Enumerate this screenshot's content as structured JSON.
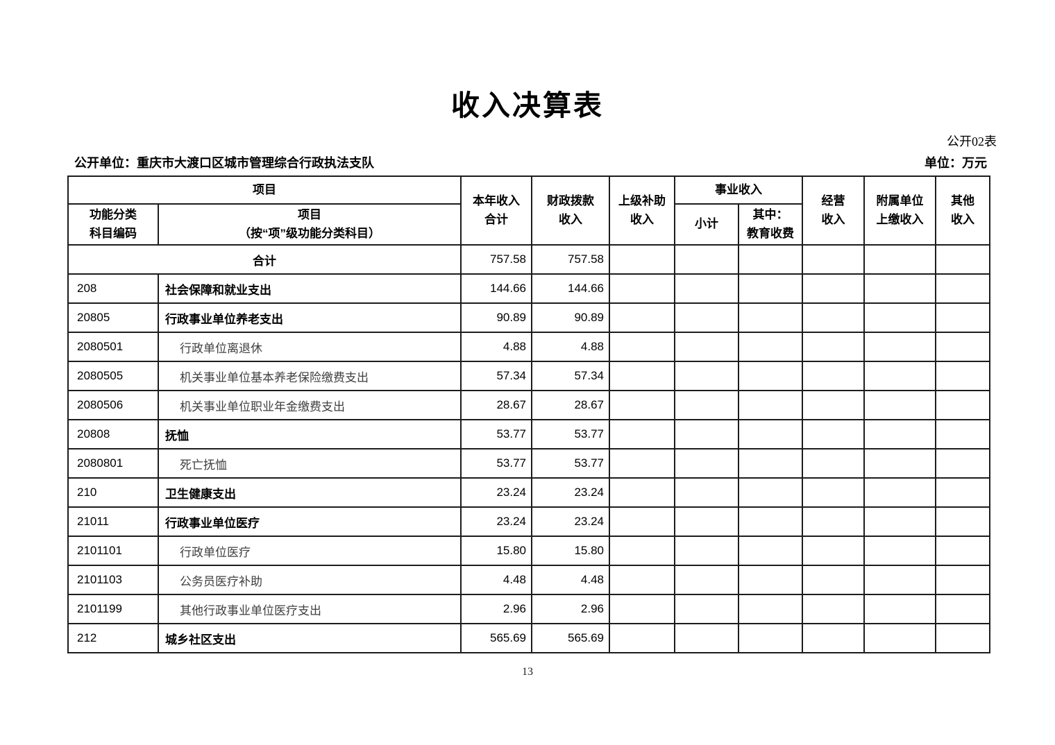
{
  "page": {
    "title": "收入决算表",
    "table_code": "公开02表",
    "unit_label": "公开单位：重庆市大渡口区城市管理综合行政执法支队",
    "currency_label": "单位：万元",
    "page_number": "13"
  },
  "table": {
    "header": {
      "item_group": "项目",
      "code_col": "功能分类\n科目编码",
      "item_col": "项目\n（按“项”级功能分类科目）",
      "total_income": "本年收入\n合计",
      "fiscal": "财政拨款\n收入",
      "superior": "上级补助\n收入",
      "business_group": "事业收入",
      "business_subtotal": "小计",
      "business_edu": "其中：\n教育收费",
      "operating": "经营\n收入",
      "affiliated": "附属单位\n上缴收入",
      "other": "其他\n收入"
    },
    "rows": [
      {
        "merged": true,
        "name": "合计",
        "total": "757.58",
        "fiscal": "757.58"
      },
      {
        "code": "208",
        "name": "社会保障和就业支出",
        "style": "bold",
        "total": "144.66",
        "fiscal": "144.66"
      },
      {
        "code": "20805",
        "name": "行政事业单位养老支出",
        "style": "bold",
        "total": "90.89",
        "fiscal": "90.89"
      },
      {
        "code": "2080501",
        "name": "行政单位离退休",
        "style": "light",
        "total": "4.88",
        "fiscal": "4.88"
      },
      {
        "code": "2080505",
        "name": "机关事业单位基本养老保险缴费支出",
        "style": "light",
        "total": "57.34",
        "fiscal": "57.34"
      },
      {
        "code": "2080506",
        "name": "机关事业单位职业年金缴费支出",
        "style": "light",
        "total": "28.67",
        "fiscal": "28.67"
      },
      {
        "code": "20808",
        "name": "抚恤",
        "style": "bold",
        "total": "53.77",
        "fiscal": "53.77"
      },
      {
        "code": "2080801",
        "name": "死亡抚恤",
        "style": "light",
        "total": "53.77",
        "fiscal": "53.77"
      },
      {
        "code": "210",
        "name": "卫生健康支出",
        "style": "bold",
        "total": "23.24",
        "fiscal": "23.24"
      },
      {
        "code": "21011",
        "name": "行政事业单位医疗",
        "style": "bold",
        "total": "23.24",
        "fiscal": "23.24"
      },
      {
        "code": "2101101",
        "name": "行政单位医疗",
        "style": "light",
        "total": "15.80",
        "fiscal": "15.80"
      },
      {
        "code": "2101103",
        "name": "公务员医疗补助",
        "style": "light",
        "total": "4.48",
        "fiscal": "4.48"
      },
      {
        "code": "2101199",
        "name": "其他行政事业单位医疗支出",
        "style": "light",
        "total": "2.96",
        "fiscal": "2.96"
      },
      {
        "code": "212",
        "name": "城乡社区支出",
        "style": "bold",
        "total": "565.69",
        "fiscal": "565.69"
      }
    ]
  }
}
